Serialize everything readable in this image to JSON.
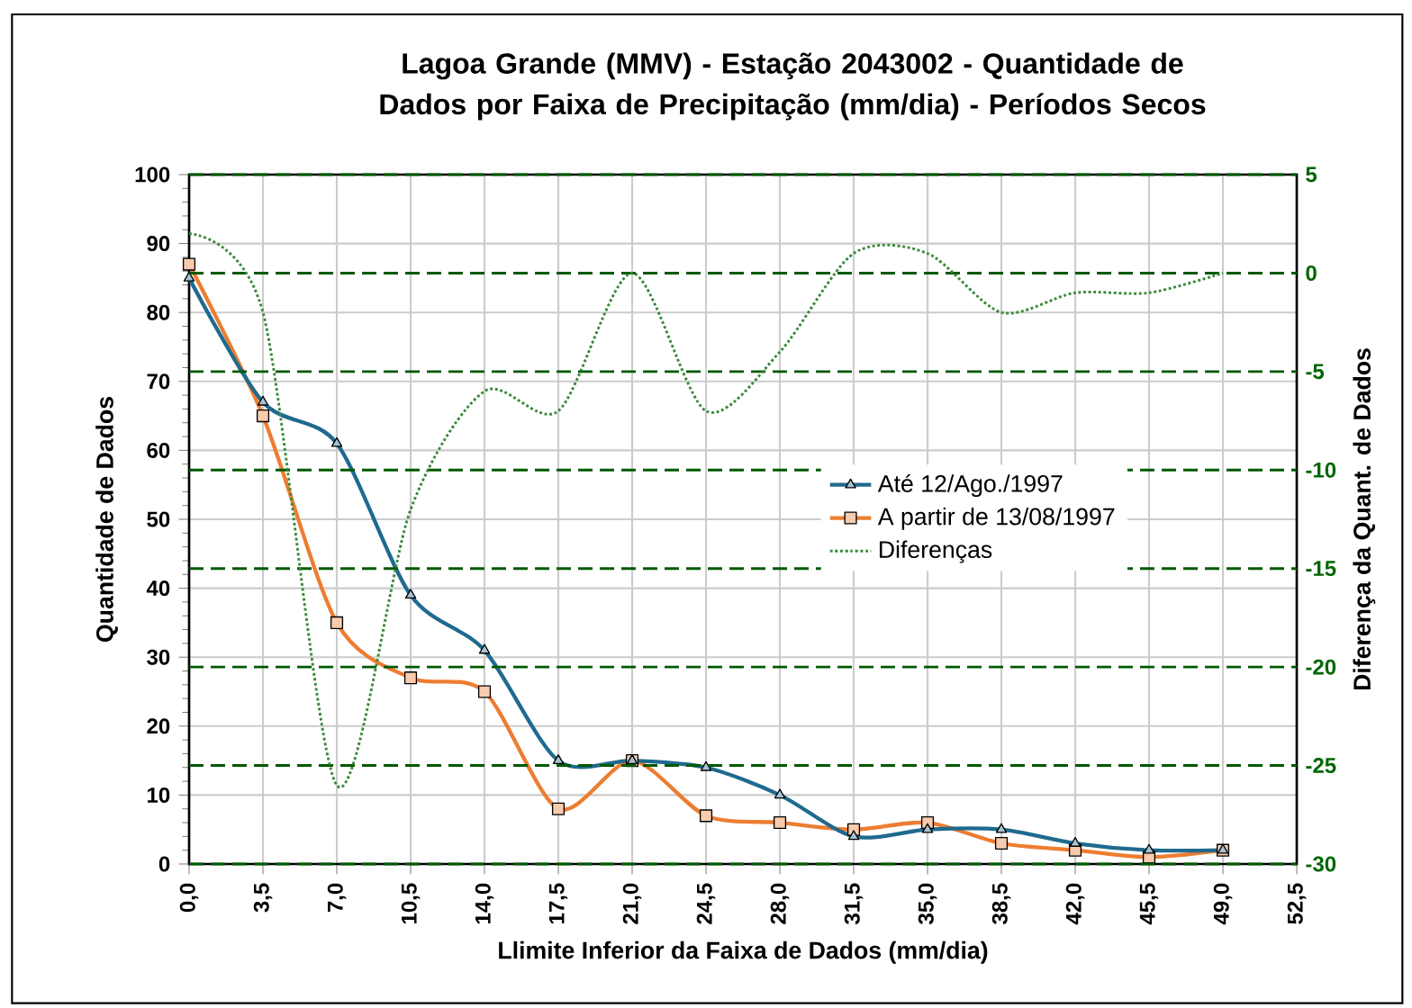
{
  "chart_data": {
    "type": "line",
    "title": "Lagoa Grande (MMV) -  Estação 2043002 - Quantidade de Dados por Faixa de Precipitação (mm/dia)  - Períodos Secos",
    "xlabel": "Llimite Inferior da Faixa de Dados (mm/dia)",
    "ylabel": "Quantidade de Dados",
    "y2label": "Diferença da Quant. de Dados",
    "x": [
      0,
      3.5,
      7,
      10.5,
      14,
      17.5,
      21,
      24.5,
      28,
      31.5,
      35,
      38.5,
      42,
      45.5,
      49
    ],
    "series": [
      {
        "name": "Até 12/Ago./1997",
        "color": "#1f6a8e",
        "marker": "triangle",
        "line_style": "solid",
        "values": [
          85,
          67,
          61,
          39,
          31,
          15,
          15,
          14,
          10,
          4,
          5,
          5,
          3,
          2,
          2
        ]
      },
      {
        "name": "A partir de 13/08/1997",
        "color": "#ed7d31",
        "marker": "square",
        "line_style": "solid",
        "values": [
          87,
          65,
          35,
          27,
          25,
          8,
          15,
          7,
          6,
          5,
          6,
          3,
          2,
          1,
          2
        ]
      },
      {
        "name": "Diferenças",
        "color": "#3a8a3a",
        "marker": "none",
        "line_style": "dotted",
        "axis": "y2",
        "values": [
          2,
          -2,
          -26,
          -12,
          -6,
          -7,
          0,
          -7,
          -4,
          1,
          1,
          -2,
          -1,
          -1,
          0
        ]
      }
    ],
    "xlim": [
      0,
      52.5
    ],
    "xticks": [
      {
        "value": 0,
        "label": "0,0"
      },
      {
        "value": 3.5,
        "label": "3,5"
      },
      {
        "value": 7,
        "label": "7,0"
      },
      {
        "value": 10.5,
        "label": "10,5"
      },
      {
        "value": 14,
        "label": "14,0"
      },
      {
        "value": 17.5,
        "label": "17,5"
      },
      {
        "value": 21,
        "label": "21,0"
      },
      {
        "value": 24.5,
        "label": "24,5"
      },
      {
        "value": 28,
        "label": "28,0"
      },
      {
        "value": 31.5,
        "label": "31,5"
      },
      {
        "value": 35,
        "label": "35,0"
      },
      {
        "value": 38.5,
        "label": "38,5"
      },
      {
        "value": 42,
        "label": "42,0"
      },
      {
        "value": 45.5,
        "label": "45,5"
      },
      {
        "value": 49,
        "label": "49,0"
      },
      {
        "value": 52.5,
        "label": "52,5"
      }
    ],
    "ylim": [
      0,
      100
    ],
    "yticks": [
      0,
      10,
      20,
      30,
      40,
      50,
      60,
      70,
      80,
      90,
      100
    ],
    "y2lim": [
      -30,
      5
    ],
    "y2ticks": [
      -30,
      -25,
      -20,
      -15,
      -10,
      -5,
      0,
      5
    ],
    "grid": true,
    "legend": "center"
  }
}
